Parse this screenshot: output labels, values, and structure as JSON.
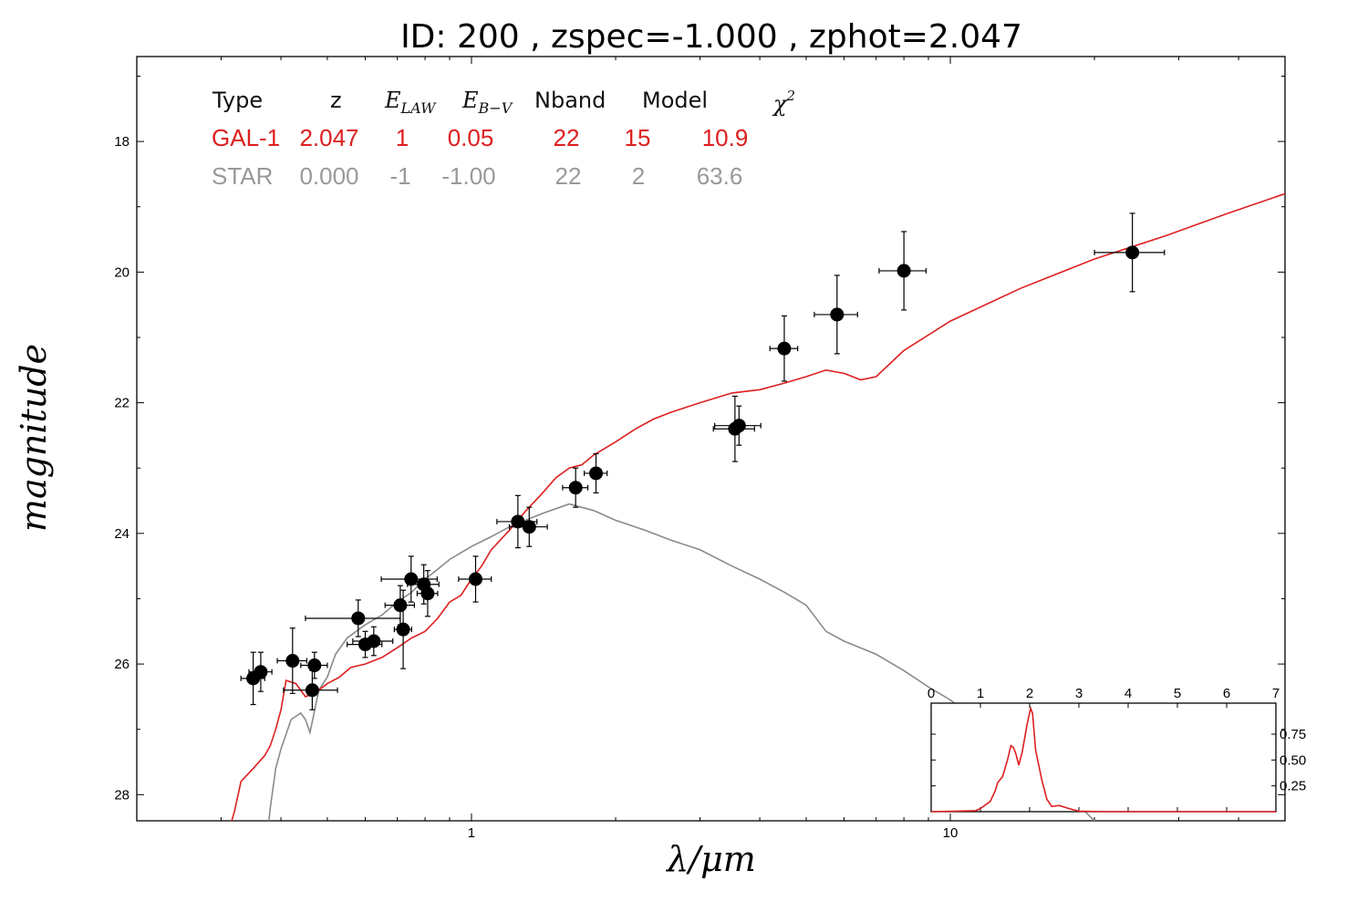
{
  "chart_data": [
    {
      "type": "line",
      "title": "ID:  200   , zspec=-1.000 , zphot=2.047",
      "xlabel": "λ/μm",
      "ylabel": "magnitude",
      "x_scale": "log",
      "xlim": [
        0.2,
        50
      ],
      "ylim": [
        28.4,
        16.7
      ],
      "y_inverted": true,
      "x_ticks": [
        {
          "value": 1,
          "label": "1"
        },
        {
          "value": 10,
          "label": "10"
        }
      ],
      "y_ticks": [
        {
          "value": 18,
          "label": "18"
        },
        {
          "value": 20,
          "label": "20"
        },
        {
          "value": 22,
          "label": "22"
        },
        {
          "value": 24,
          "label": "24"
        },
        {
          "value": 26,
          "label": "26"
        },
        {
          "value": 28,
          "label": "28"
        }
      ],
      "fit_table": {
        "headers": {
          "type": "Type",
          "z": "z",
          "elaw": "E",
          "elaw_sub": "LAW",
          "ebv": "E",
          "ebv_sub": "B−V",
          "nband": "Nband",
          "model": "Model",
          "chi2": "χ",
          "chi2_sup": "2"
        },
        "rows": [
          {
            "type": "GAL-1",
            "z": "2.047",
            "elaw": "1",
            "ebv": "0.05",
            "nband": "22",
            "model": "15",
            "chi2": "10.9",
            "color": "#dd1f1f"
          },
          {
            "type": "STAR",
            "z": "0.000",
            "elaw": "-1",
            "ebv": "-1.00",
            "nband": "22",
            "model": "2",
            "chi2": "63.6",
            "color": "#999999"
          }
        ]
      },
      "series": [
        {
          "color": "#dd1f1f",
          "points": [
            [
              0.31,
              28.6
            ],
            [
              0.32,
              28.25
            ],
            [
              0.33,
              27.8
            ],
            [
              0.35,
              27.6
            ],
            [
              0.37,
              27.4
            ],
            [
              0.38,
              27.25
            ],
            [
              0.39,
              27.0
            ],
            [
              0.4,
              26.7
            ],
            [
              0.41,
              26.25
            ],
            [
              0.43,
              26.3
            ],
            [
              0.45,
              26.5
            ],
            [
              0.47,
              26.45
            ],
            [
              0.5,
              26.3
            ],
            [
              0.53,
              26.2
            ],
            [
              0.56,
              26.05
            ],
            [
              0.6,
              26.0
            ],
            [
              0.65,
              25.9
            ],
            [
              0.7,
              25.75
            ],
            [
              0.75,
              25.6
            ],
            [
              0.8,
              25.5
            ],
            [
              0.85,
              25.3
            ],
            [
              0.9,
              25.05
            ],
            [
              0.95,
              24.95
            ],
            [
              1.0,
              24.7
            ],
            [
              1.05,
              24.5
            ],
            [
              1.1,
              24.25
            ],
            [
              1.2,
              23.95
            ],
            [
              1.3,
              23.65
            ],
            [
              1.4,
              23.4
            ],
            [
              1.5,
              23.15
            ],
            [
              1.6,
              23.0
            ],
            [
              1.7,
              22.95
            ],
            [
              1.8,
              22.8
            ],
            [
              2.0,
              22.6
            ],
            [
              2.2,
              22.4
            ],
            [
              2.4,
              22.25
            ],
            [
              2.6,
              22.15
            ],
            [
              3.0,
              22.0
            ],
            [
              3.5,
              21.85
            ],
            [
              4.0,
              21.8
            ],
            [
              4.5,
              21.7
            ],
            [
              5.0,
              21.6
            ],
            [
              5.5,
              21.5
            ],
            [
              6.0,
              21.55
            ],
            [
              6.5,
              21.65
            ],
            [
              7.0,
              21.6
            ],
            [
              8.0,
              21.2
            ],
            [
              10.0,
              20.75
            ],
            [
              14.0,
              20.25
            ],
            [
              20.0,
              19.8
            ],
            [
              28.0,
              19.45
            ],
            [
              38.0,
              19.1
            ],
            [
              50.0,
              18.8
            ]
          ]
        },
        {
          "color": "#8a8a8a",
          "points": [
            [
              0.375,
              28.6
            ],
            [
              0.38,
              28.2
            ],
            [
              0.39,
              27.6
            ],
            [
              0.4,
              27.3
            ],
            [
              0.42,
              26.85
            ],
            [
              0.44,
              26.75
            ],
            [
              0.45,
              26.85
            ],
            [
              0.46,
              27.05
            ],
            [
              0.48,
              26.4
            ],
            [
              0.5,
              26.2
            ],
            [
              0.52,
              25.85
            ],
            [
              0.55,
              25.6
            ],
            [
              0.6,
              25.4
            ],
            [
              0.65,
              25.25
            ],
            [
              0.7,
              25.05
            ],
            [
              0.75,
              24.9
            ],
            [
              0.8,
              24.7
            ],
            [
              0.85,
              24.55
            ],
            [
              0.9,
              24.4
            ],
            [
              1.0,
              24.2
            ],
            [
              1.1,
              24.05
            ],
            [
              1.2,
              23.9
            ],
            [
              1.4,
              23.7
            ],
            [
              1.6,
              23.55
            ],
            [
              1.8,
              23.65
            ],
            [
              2.0,
              23.8
            ],
            [
              2.3,
              23.95
            ],
            [
              2.6,
              24.1
            ],
            [
              3.0,
              24.25
            ],
            [
              3.5,
              24.5
            ],
            [
              4.0,
              24.7
            ],
            [
              4.5,
              24.9
            ],
            [
              5.0,
              25.1
            ],
            [
              5.5,
              25.5
            ],
            [
              6.0,
              25.65
            ],
            [
              7.0,
              25.85
            ],
            [
              8.0,
              26.1
            ],
            [
              9.0,
              26.35
            ],
            [
              10.0,
              26.55
            ],
            [
              12.0,
              27.0
            ],
            [
              14.0,
              27.4
            ],
            [
              17.0,
              27.9
            ],
            [
              20.0,
              28.4
            ],
            [
              21.0,
              28.6
            ]
          ]
        }
      ],
      "photometry": [
        {
          "x": 0.35,
          "y": 26.22,
          "xerr": 0.02,
          "yerr": 0.4
        },
        {
          "x": 0.363,
          "y": 26.12,
          "xerr": 0.02,
          "yerr": 0.3
        },
        {
          "x": 0.423,
          "y": 25.95,
          "xerr": 0.03,
          "yerr": 0.5
        },
        {
          "x": 0.465,
          "y": 26.4,
          "xerr": 0.06,
          "yerr": 0.3
        },
        {
          "x": 0.47,
          "y": 26.02,
          "xerr": 0.03,
          "yerr": 0.2
        },
        {
          "x": 0.58,
          "y": 25.3,
          "xerr": 0.13,
          "yerr": 0.28
        },
        {
          "x": 0.6,
          "y": 25.7,
          "xerr": 0.05,
          "yerr": 0.2
        },
        {
          "x": 0.625,
          "y": 25.65,
          "xerr": 0.06,
          "yerr": 0.22
        },
        {
          "x": 0.71,
          "y": 25.1,
          "xerr": 0.05,
          "yerr": 0.3
        },
        {
          "x": 0.72,
          "y": 25.47,
          "xerr": 0.03,
          "yerr": 0.6
        },
        {
          "x": 0.748,
          "y": 24.7,
          "xerr": 0.1,
          "yerr": 0.35
        },
        {
          "x": 0.795,
          "y": 24.78,
          "xerr": 0.06,
          "yerr": 0.3
        },
        {
          "x": 0.81,
          "y": 24.92,
          "xerr": 0.04,
          "yerr": 0.35
        },
        {
          "x": 1.02,
          "y": 24.7,
          "xerr": 0.08,
          "yerr": 0.35
        },
        {
          "x": 1.25,
          "y": 23.82,
          "xerr": 0.12,
          "yerr": 0.4
        },
        {
          "x": 1.32,
          "y": 23.9,
          "xerr": 0.12,
          "yerr": 0.3
        },
        {
          "x": 1.65,
          "y": 23.3,
          "xerr": 0.1,
          "yerr": 0.3
        },
        {
          "x": 1.82,
          "y": 23.08,
          "xerr": 0.1,
          "yerr": 0.3
        },
        {
          "x": 3.55,
          "y": 22.4,
          "xerr": 0.35,
          "yerr": 0.5
        },
        {
          "x": 3.62,
          "y": 22.35,
          "xerr": 0.4,
          "yerr": 0.3
        },
        {
          "x": 4.5,
          "y": 21.17,
          "xerr": 0.3,
          "yerr": 0.5
        },
        {
          "x": 5.8,
          "y": 20.65,
          "xerr": 0.6,
          "yerr": 0.6
        },
        {
          "x": 8.0,
          "y": 19.98,
          "xerr": 0.9,
          "yerr": 0.6
        },
        {
          "x": 24.0,
          "y": 19.7,
          "xerr": 4.0,
          "yerr": 0.6
        }
      ]
    },
    {
      "type": "line",
      "title": "",
      "xlabel": "",
      "ylabel": "",
      "xlim": [
        0,
        7
      ],
      "ylim": [
        0,
        1.05
      ],
      "x_ticks": [
        {
          "value": 0,
          "label": "0"
        },
        {
          "value": 1,
          "label": "1"
        },
        {
          "value": 2,
          "label": "2"
        },
        {
          "value": 3,
          "label": "3"
        },
        {
          "value": 4,
          "label": "4"
        },
        {
          "value": 5,
          "label": "5"
        },
        {
          "value": 6,
          "label": "6"
        },
        {
          "value": 7,
          "label": "7"
        }
      ],
      "y_ticks": [
        {
          "value": 0.25,
          "label": "0.25"
        },
        {
          "value": 0.5,
          "label": "0.50"
        },
        {
          "value": 0.75,
          "label": "0.75"
        }
      ],
      "series": [
        {
          "color": "#dd1f1f",
          "points": [
            [
              0,
              0
            ],
            [
              0.9,
              0.01
            ],
            [
              1.0,
              0.03
            ],
            [
              1.2,
              0.1
            ],
            [
              1.3,
              0.2
            ],
            [
              1.35,
              0.28
            ],
            [
              1.45,
              0.34
            ],
            [
              1.55,
              0.5
            ],
            [
              1.62,
              0.64
            ],
            [
              1.67,
              0.62
            ],
            [
              1.72,
              0.56
            ],
            [
              1.78,
              0.45
            ],
            [
              1.85,
              0.58
            ],
            [
              1.95,
              0.85
            ],
            [
              2.02,
              1.0
            ],
            [
              2.06,
              0.95
            ],
            [
              2.12,
              0.6
            ],
            [
              2.25,
              0.3
            ],
            [
              2.35,
              0.12
            ],
            [
              2.45,
              0.05
            ],
            [
              2.6,
              0.06
            ],
            [
              2.8,
              0.03
            ],
            [
              3.0,
              0.005
            ],
            [
              3.5,
              0.0
            ],
            [
              7,
              0
            ]
          ]
        }
      ]
    }
  ]
}
